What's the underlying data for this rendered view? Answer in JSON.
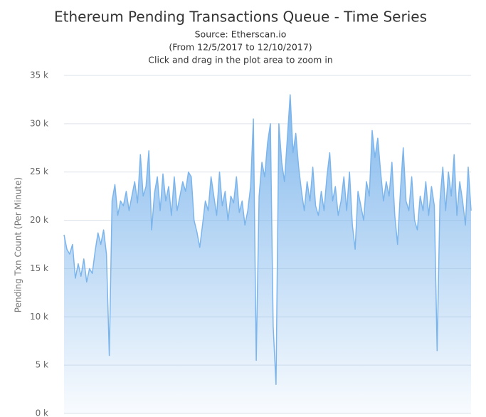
{
  "chart_data": {
    "type": "area",
    "title": "Ethereum Pending Transactions Queue - Time Series",
    "subtitle": [
      "Source: Etherscan.io",
      "(From 12/5/2017 to 12/10/2017)",
      "Click and drag in the plot area to zoom in"
    ],
    "y_label": "Pending Txn Count (Per Minute)",
    "color": "#7cb5ec",
    "grid": true,
    "ylim": [
      0,
      35000
    ],
    "yticks": [
      {
        "value": 0,
        "label": "0 k"
      },
      {
        "value": 5000,
        "label": "5 k"
      },
      {
        "value": 10000,
        "label": "10 k"
      },
      {
        "value": 15000,
        "label": "15 k"
      },
      {
        "value": 20000,
        "label": "20 k"
      },
      {
        "value": 25000,
        "label": "25 k"
      },
      {
        "value": 30000,
        "label": "30 k"
      },
      {
        "value": 35000,
        "label": "35 k"
      }
    ],
    "values": [
      18500,
      17000,
      16500,
      17500,
      14000,
      15500,
      14200,
      16000,
      13600,
      15000,
      14500,
      16800,
      18700,
      17500,
      19000,
      16500,
      6000,
      22000,
      23700,
      20500,
      22000,
      21500,
      23000,
      21000,
      22500,
      24000,
      21800,
      26800,
      22500,
      23500,
      27200,
      19000,
      22800,
      24500,
      21000,
      24800,
      22000,
      23500,
      20500,
      24500,
      21000,
      22500,
      24000,
      23000,
      25000,
      24500,
      20000,
      18800,
      17200,
      19500,
      22000,
      21000,
      24500,
      22500,
      20500,
      25000,
      21500,
      23000,
      20000,
      22500,
      21800,
      24500,
      20800,
      22000,
      19500,
      21000,
      23500,
      30500,
      5500,
      22500,
      26000,
      24500,
      28000,
      30000,
      9000,
      3000,
      30000,
      26000,
      24000,
      28500,
      33000,
      27000,
      29000,
      25500,
      23000,
      21000,
      24000,
      22000,
      25500,
      21500,
      20500,
      23000,
      21000,
      24500,
      27000,
      22000,
      23500,
      20500,
      22000,
      24500,
      21000,
      25000,
      19500,
      17000,
      23000,
      21500,
      20000,
      24000,
      22500,
      29300,
      26500,
      28500,
      25000,
      22000,
      24000,
      22500,
      26000,
      20500,
      17500,
      23000,
      27500,
      22000,
      21000,
      24500,
      20000,
      19000,
      22500,
      21000,
      24000,
      20500,
      23500,
      21500,
      6500,
      22000,
      25500,
      21000,
      25000,
      22500,
      26800,
      20500,
      24000,
      22000,
      19500,
      25500,
      21000
    ]
  }
}
